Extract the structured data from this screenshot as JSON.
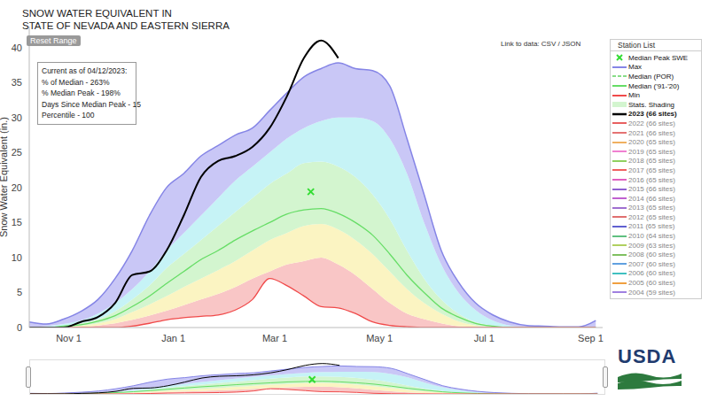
{
  "chart_data": {
    "type": "area",
    "title": [
      "SNOW WATER EQUIVALENT IN",
      "STATE OF NEVADA AND EASTERN SIERRA"
    ],
    "y_label": "Snow Water Equivalent (in.)",
    "reset_button": "Reset Range",
    "data_link": "Link to data: CSV / JSON",
    "legend_title": "Station List",
    "logo": "USDA",
    "info_box": [
      "Current as of 04/12/2023:",
      "% of Median - 263%",
      "% Median Peak - 198%",
      "Days Since Median Peak - 15",
      "Percentile - 100"
    ],
    "x": [
      8,
      18,
      28,
      38,
      48,
      58,
      68,
      78,
      88,
      98,
      108,
      118,
      128,
      138,
      148,
      158,
      168,
      178,
      188,
      198,
      208,
      218,
      228,
      238,
      248,
      258,
      268,
      278,
      288,
      298,
      308,
      318,
      328,
      338
    ],
    "xlim": [
      8,
      342
    ],
    "xticks": [
      {
        "value": 31,
        "label": "Nov 1"
      },
      {
        "value": 92,
        "label": "Jan 1"
      },
      {
        "value": 151,
        "label": "Mar 1"
      },
      {
        "value": 212,
        "label": "May 1"
      },
      {
        "value": 273,
        "label": "Jul 1"
      },
      {
        "value": 335,
        "label": "Sep 1"
      }
    ],
    "ylim": [
      0,
      43
    ],
    "yticks": [
      0,
      5,
      10,
      15,
      20,
      25,
      30,
      35,
      40
    ],
    "grid": false,
    "series": [
      {
        "name": "Max",
        "color": "#8585e6",
        "values": [
          0.8,
          0.5,
          1.2,
          2.3,
          4,
          7,
          11,
          16,
          20,
          22,
          24.5,
          26,
          27.5,
          28.5,
          31,
          33.5,
          35.8,
          37,
          37.8,
          37,
          36.7,
          34.5,
          27,
          19,
          11,
          6.5,
          3.5,
          1.8,
          0.8,
          0.3,
          0.2,
          0.1,
          0.1,
          1.0
        ]
      },
      {
        "name": "Median ('91-'20)",
        "color": "#66dd66",
        "values": [
          0,
          0,
          0.2,
          0.4,
          0.9,
          1.7,
          3,
          4.5,
          6.3,
          8,
          9.7,
          11,
          12.5,
          13.8,
          15,
          16.2,
          16.8,
          17,
          16.3,
          15,
          13.2,
          10.5,
          7.5,
          5,
          2.8,
          1.5,
          0.6,
          0.2,
          0,
          0,
          0,
          0,
          0,
          0
        ]
      },
      {
        "name": "Min",
        "color": "#f04a4a",
        "values": [
          0,
          0,
          0,
          0,
          0,
          0,
          0.2,
          0.6,
          1.1,
          1.4,
          1.6,
          1.8,
          2.5,
          4,
          7,
          6,
          4.5,
          3,
          2.8,
          2,
          0.8,
          0.3,
          0.1,
          0,
          0,
          0,
          0,
          0,
          0,
          0,
          0,
          0,
          0,
          0
        ]
      },
      {
        "name": "2023 (66 sites)",
        "color": "#000000",
        "values": [
          0,
          0,
          0,
          0.8,
          1.5,
          3.5,
          7.5,
          8,
          11,
          16,
          21.5,
          23.8,
          24.5,
          25.8,
          28.5,
          33,
          38.5,
          41,
          38.5,
          null,
          null,
          null,
          null,
          null,
          null,
          null,
          null,
          null,
          null,
          null,
          null,
          null,
          null,
          null
        ]
      }
    ],
    "shading": {
      "name": "Stats. Shading",
      "colors": [
        "#f9c6c6",
        "#fbf4c2",
        "#d3f5cf",
        "#c6f3f6",
        "#c9c7f6"
      ],
      "bounds": [
        [
          0,
          0,
          0,
          0.1,
          0.3,
          0.6,
          1.1,
          1.7,
          2.4,
          3.2,
          4,
          4.8,
          5.8,
          7,
          8,
          9,
          9.5,
          10,
          9,
          7.5,
          5.5,
          3.5,
          2,
          1.2,
          0.6,
          0.2,
          0.1,
          0,
          0,
          0,
          0,
          0,
          0,
          0
        ],
        [
          0,
          0,
          0.1,
          0.3,
          0.6,
          1.2,
          2.2,
          3.3,
          4.5,
          5.8,
          7,
          8.2,
          9.5,
          11,
          12.5,
          13.5,
          14.5,
          14.8,
          14,
          12.5,
          10.5,
          8,
          5.5,
          3.5,
          2,
          0.9,
          0.3,
          0.1,
          0,
          0,
          0,
          0,
          0,
          0
        ],
        [
          0,
          0.1,
          0.3,
          0.6,
          1.2,
          2.3,
          4,
          6,
          8.5,
          10.5,
          12.5,
          14.5,
          16.5,
          18.5,
          20.5,
          22,
          23.5,
          23.7,
          23,
          21.5,
          19,
          15.5,
          11,
          7,
          4,
          2,
          0.8,
          0.3,
          0.1,
          0,
          0,
          0,
          0,
          0
        ],
        [
          0,
          0.2,
          0.5,
          1,
          2,
          3.5,
          5.5,
          8,
          11,
          13.5,
          16,
          18.5,
          21,
          23,
          25,
          27,
          28.5,
          29.5,
          30,
          30,
          29.5,
          27,
          22,
          15,
          9,
          5,
          2.5,
          1,
          0.3,
          0.1,
          0,
          0,
          0,
          0
        ]
      ]
    },
    "marker_point": {
      "name": "Median Peak SWE",
      "x": 172,
      "y": 19.4,
      "color": "#33dd33",
      "marker": "x"
    },
    "legend_only": [
      {
        "name": "Median (POR)",
        "color": "#88dd88",
        "line_style": "dashed"
      }
    ],
    "other_years": [
      {
        "name": "2022 (66 sites)",
        "color": "#e86060"
      },
      {
        "name": "2021 (66 sites)",
        "color": "#e57373"
      },
      {
        "name": "2020 (65 sites)",
        "color": "#f0b060"
      },
      {
        "name": "2019 (65 sites)",
        "color": "#f080d0"
      },
      {
        "name": "2018 (65 sites)",
        "color": "#90d060"
      },
      {
        "name": "2017 (65 sites)",
        "color": "#f06060"
      },
      {
        "name": "2016 (65 sites)",
        "color": "#e060c0"
      },
      {
        "name": "2015 (66 sites)",
        "color": "#9060d0"
      },
      {
        "name": "2014 (66 sites)",
        "color": "#c060d0"
      },
      {
        "name": "2013 (65 sites)",
        "color": "#a070d0"
      },
      {
        "name": "2012 (65 sites)",
        "color": "#e07070"
      },
      {
        "name": "2011 (65 sites)",
        "color": "#6060d0"
      },
      {
        "name": "2010 (64 sites)",
        "color": "#60c080"
      },
      {
        "name": "2009 (63 sites)",
        "color": "#b0d060"
      },
      {
        "name": "2008 (60 sites)",
        "color": "#80c060"
      },
      {
        "name": "2007 (60 sites)",
        "color": "#60a0e0"
      },
      {
        "name": "2006 (60 sites)",
        "color": "#40c0c0"
      },
      {
        "name": "2005 (60 sites)",
        "color": "#f0a040"
      },
      {
        "name": "2004 (59 sites)",
        "color": "#a080e0"
      }
    ]
  }
}
